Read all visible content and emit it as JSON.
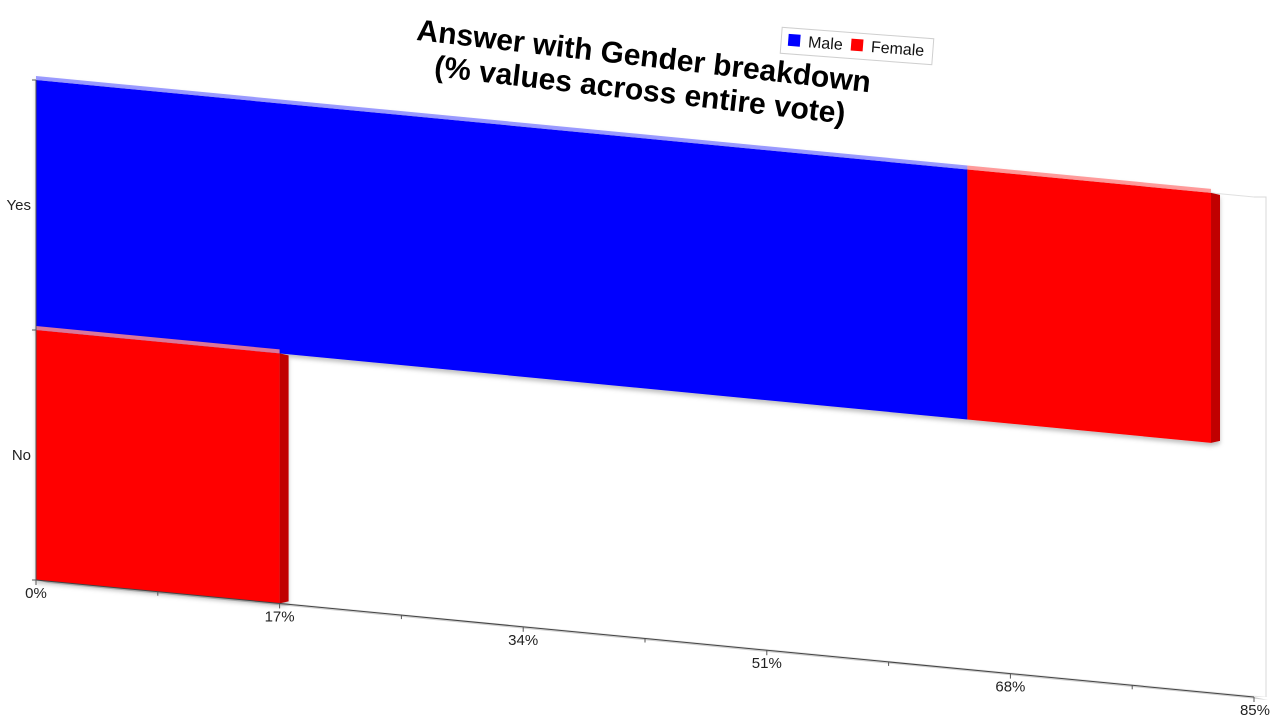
{
  "chart_data": {
    "type": "bar",
    "orientation": "horizontal",
    "stacked": true,
    "title": "Answer with Gender breakdown",
    "subtitle": "(% values across entire vote)",
    "categories": [
      "Yes",
      "No"
    ],
    "series": [
      {
        "name": "Male",
        "color": "#0000ff",
        "values": [
          65,
          0
        ]
      },
      {
        "name": "Female",
        "color": "#ff0000",
        "values": [
          17,
          17
        ]
      }
    ],
    "xlim": [
      0,
      85
    ],
    "x_ticks": [
      0,
      17,
      34,
      51,
      68,
      85
    ],
    "x_tick_labels": [
      "0%",
      "17%",
      "34%",
      "51%",
      "68%",
      "85%"
    ],
    "legend_position": "top-right",
    "grid": false,
    "style": "3d-perspective"
  }
}
